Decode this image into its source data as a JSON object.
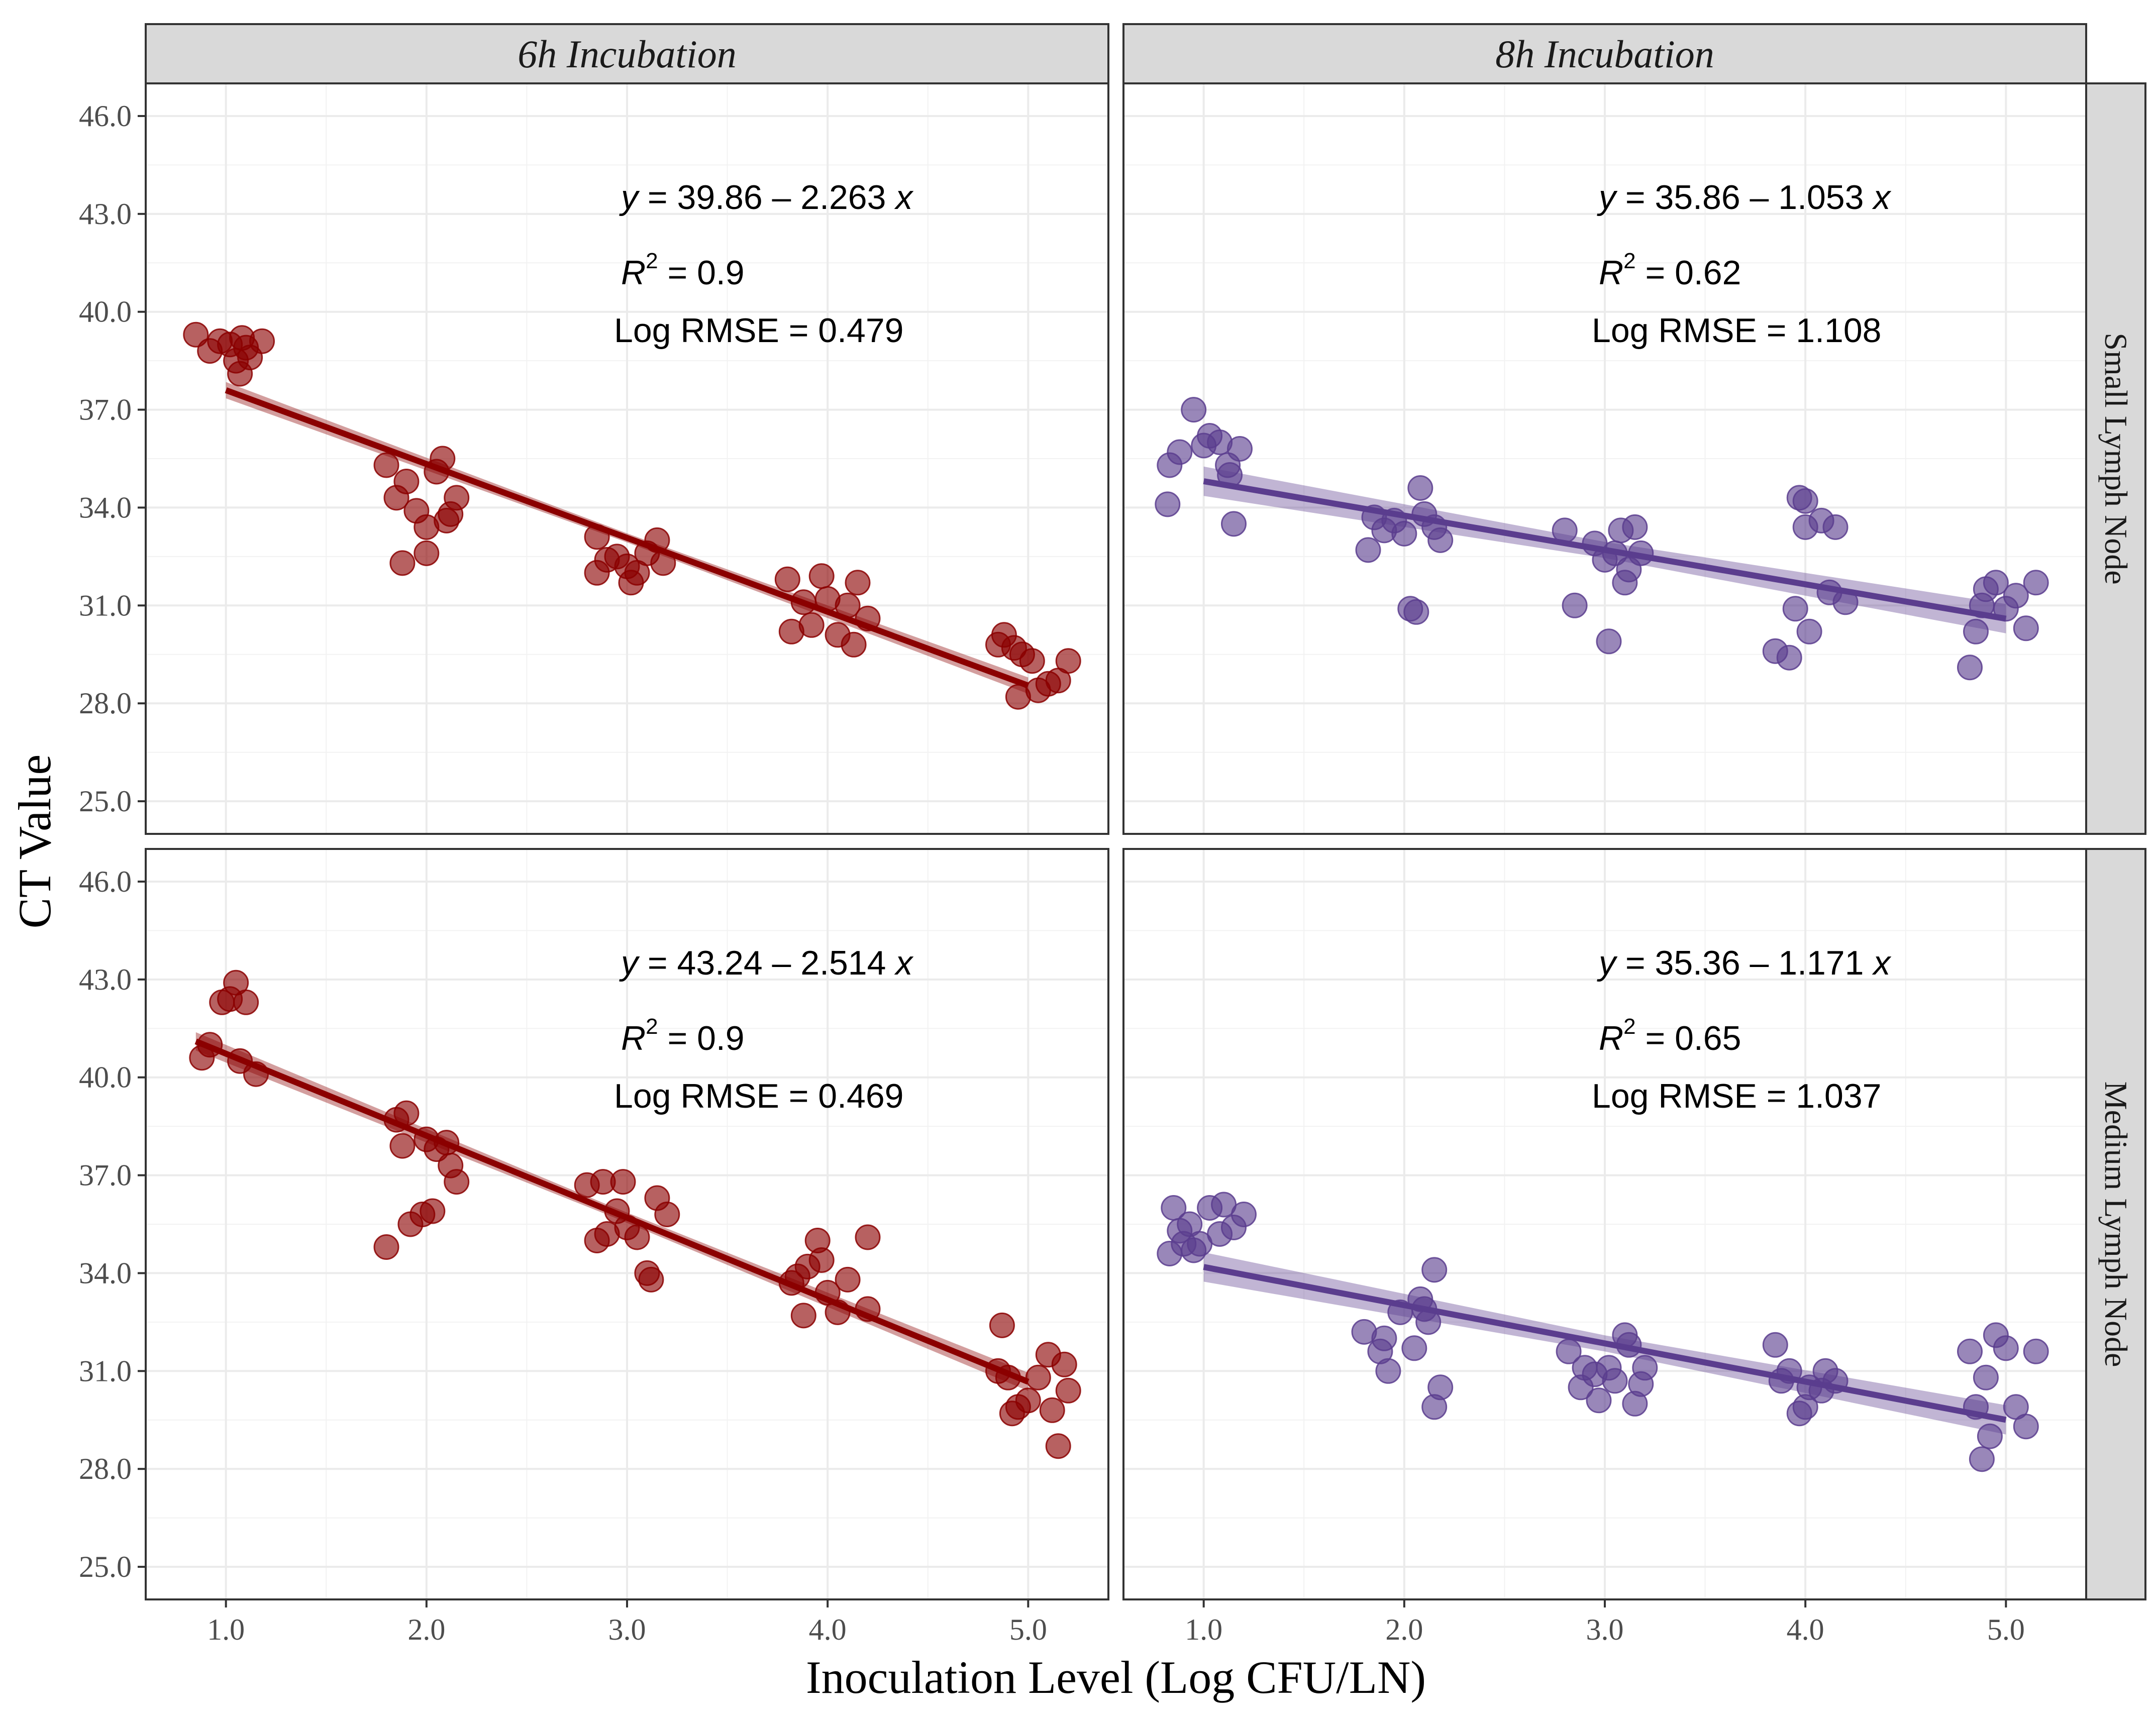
{
  "chart_data": {
    "type": "scatter",
    "xlabel": "Inoculation Level (Log CFU/LN)",
    "ylabel": "CT Value",
    "xlim": [
      0.6,
      5.4
    ],
    "ylim": [
      24.0,
      47.0
    ],
    "x_ticks": [
      "1.0",
      "2.0",
      "3.0",
      "4.0",
      "5.0"
    ],
    "x_tick_values": [
      1,
      2,
      3,
      4,
      5
    ],
    "y_ticks": [
      "25.0",
      "28.0",
      "31.0",
      "34.0",
      "37.0",
      "40.0",
      "43.0",
      "46.0"
    ],
    "y_tick_values": [
      25,
      28,
      31,
      34,
      37,
      40,
      43,
      46
    ],
    "columns": [
      "6h Incubation",
      "8h Incubation"
    ],
    "rows": [
      "Small Lymph Node",
      "Medium Lymph Node"
    ],
    "panels": [
      {
        "name": "small-6h",
        "row": 0,
        "col": 0,
        "color": "#8b0000",
        "intercept": 39.86,
        "slope": -2.263,
        "fit_x": [
          1.0,
          5.0
        ],
        "ci_half": 0.25,
        "eq_y": "y",
        "eq_rest": " = 39.86 – 2.263 ",
        "eq_x": "x",
        "r2_label": "R",
        "r2_sup": "2",
        "r2_value": " = 0.9",
        "rmse": "Log RMSE = 0.479",
        "points": [
          [
            0.85,
            39.3
          ],
          [
            0.92,
            38.8
          ],
          [
            0.97,
            39.1
          ],
          [
            1.02,
            39.0
          ],
          [
            1.05,
            38.5
          ],
          [
            1.07,
            38.1
          ],
          [
            1.08,
            39.2
          ],
          [
            1.1,
            38.9
          ],
          [
            1.12,
            38.6
          ],
          [
            1.18,
            39.1
          ],
          [
            1.8,
            35.3
          ],
          [
            1.85,
            34.3
          ],
          [
            1.88,
            32.3
          ],
          [
            1.9,
            34.8
          ],
          [
            1.95,
            33.9
          ],
          [
            2.0,
            33.4
          ],
          [
            2.0,
            32.6
          ],
          [
            2.05,
            35.1
          ],
          [
            2.08,
            35.5
          ],
          [
            2.1,
            33.6
          ],
          [
            2.12,
            33.8
          ],
          [
            2.15,
            34.3
          ],
          [
            2.85,
            33.1
          ],
          [
            2.85,
            32.0
          ],
          [
            2.9,
            32.4
          ],
          [
            2.95,
            32.5
          ],
          [
            3.0,
            32.2
          ],
          [
            3.02,
            31.7
          ],
          [
            3.05,
            32.0
          ],
          [
            3.1,
            32.6
          ],
          [
            3.15,
            33.0
          ],
          [
            3.18,
            32.3
          ],
          [
            3.8,
            31.8
          ],
          [
            3.82,
            30.2
          ],
          [
            3.88,
            31.1
          ],
          [
            3.92,
            30.4
          ],
          [
            3.97,
            31.9
          ],
          [
            4.0,
            31.2
          ],
          [
            4.05,
            30.1
          ],
          [
            4.1,
            31.0
          ],
          [
            4.13,
            29.8
          ],
          [
            4.15,
            31.7
          ],
          [
            4.2,
            30.6
          ],
          [
            4.85,
            29.8
          ],
          [
            4.88,
            30.1
          ],
          [
            4.93,
            29.7
          ],
          [
            4.95,
            28.2
          ],
          [
            4.97,
            29.5
          ],
          [
            5.02,
            29.3
          ],
          [
            5.05,
            28.4
          ],
          [
            5.1,
            28.6
          ],
          [
            5.15,
            28.7
          ],
          [
            5.2,
            29.3
          ]
        ]
      },
      {
        "name": "small-8h",
        "row": 0,
        "col": 1,
        "color": "#5b3d8e",
        "intercept": 35.86,
        "slope": -1.053,
        "fit_x": [
          1.0,
          5.0
        ],
        "ci_half": 0.45,
        "eq_y": "y",
        "eq_rest": " = 35.86 – 1.053 ",
        "eq_x": "x",
        "r2_label": "R",
        "r2_sup": "2",
        "r2_value": " = 0.62",
        "rmse": "Log RMSE = 1.108",
        "points": [
          [
            0.82,
            34.1
          ],
          [
            0.83,
            35.3
          ],
          [
            0.88,
            35.7
          ],
          [
            0.95,
            37.0
          ],
          [
            1.0,
            35.9
          ],
          [
            1.03,
            36.2
          ],
          [
            1.08,
            36.0
          ],
          [
            1.12,
            35.3
          ],
          [
            1.13,
            35.0
          ],
          [
            1.15,
            33.5
          ],
          [
            1.18,
            35.8
          ],
          [
            1.82,
            32.7
          ],
          [
            1.85,
            33.7
          ],
          [
            1.9,
            33.3
          ],
          [
            1.95,
            33.6
          ],
          [
            2.0,
            33.2
          ],
          [
            2.03,
            30.9
          ],
          [
            2.06,
            30.8
          ],
          [
            2.08,
            34.6
          ],
          [
            2.1,
            33.8
          ],
          [
            2.15,
            33.4
          ],
          [
            2.18,
            33.0
          ],
          [
            2.8,
            33.3
          ],
          [
            2.85,
            31.0
          ],
          [
            2.95,
            32.9
          ],
          [
            3.0,
            32.4
          ],
          [
            3.02,
            29.9
          ],
          [
            3.05,
            32.6
          ],
          [
            3.08,
            33.3
          ],
          [
            3.1,
            31.7
          ],
          [
            3.12,
            32.1
          ],
          [
            3.15,
            33.4
          ],
          [
            3.18,
            32.6
          ],
          [
            3.85,
            29.6
          ],
          [
            3.92,
            29.4
          ],
          [
            3.95,
            30.9
          ],
          [
            3.97,
            34.3
          ],
          [
            4.0,
            34.2
          ],
          [
            4.0,
            33.4
          ],
          [
            4.02,
            30.2
          ],
          [
            4.08,
            33.6
          ],
          [
            4.12,
            31.4
          ],
          [
            4.15,
            33.4
          ],
          [
            4.2,
            31.1
          ],
          [
            4.82,
            29.1
          ],
          [
            4.85,
            30.2
          ],
          [
            4.88,
            31.0
          ],
          [
            4.9,
            31.5
          ],
          [
            4.95,
            31.7
          ],
          [
            5.0,
            30.9
          ],
          [
            5.05,
            31.3
          ],
          [
            5.1,
            30.3
          ],
          [
            5.15,
            31.7
          ]
        ]
      },
      {
        "name": "medium-6h",
        "row": 1,
        "col": 0,
        "color": "#8b0000",
        "intercept": 43.24,
        "slope": -2.514,
        "fit_x": [
          0.85,
          5.0
        ],
        "ci_half": 0.28,
        "eq_y": "y",
        "eq_rest": " = 43.24 – 2.514 ",
        "eq_x": "x",
        "r2_label": "R",
        "r2_sup": "2",
        "r2_value": " = 0.9",
        "rmse": "Log RMSE = 0.469",
        "points": [
          [
            0.88,
            40.6
          ],
          [
            0.92,
            41.0
          ],
          [
            0.98,
            42.3
          ],
          [
            1.02,
            42.4
          ],
          [
            1.05,
            42.9
          ],
          [
            1.07,
            40.5
          ],
          [
            1.1,
            42.3
          ],
          [
            1.15,
            40.1
          ],
          [
            1.8,
            34.8
          ],
          [
            1.85,
            38.7
          ],
          [
            1.88,
            37.9
          ],
          [
            1.9,
            38.9
          ],
          [
            1.92,
            35.5
          ],
          [
            1.98,
            35.8
          ],
          [
            2.0,
            38.1
          ],
          [
            2.03,
            35.9
          ],
          [
            2.05,
            37.8
          ],
          [
            2.1,
            38.0
          ],
          [
            2.12,
            37.3
          ],
          [
            2.15,
            36.8
          ],
          [
            2.8,
            36.7
          ],
          [
            2.85,
            35.0
          ],
          [
            2.88,
            36.8
          ],
          [
            2.9,
            35.2
          ],
          [
            2.95,
            35.9
          ],
          [
            2.98,
            36.8
          ],
          [
            3.0,
            35.4
          ],
          [
            3.05,
            35.1
          ],
          [
            3.1,
            34.0
          ],
          [
            3.12,
            33.8
          ],
          [
            3.15,
            36.3
          ],
          [
            3.2,
            35.8
          ],
          [
            3.82,
            33.7
          ],
          [
            3.85,
            33.9
          ],
          [
            3.88,
            32.7
          ],
          [
            3.9,
            34.2
          ],
          [
            3.95,
            35.0
          ],
          [
            3.97,
            34.4
          ],
          [
            4.0,
            33.4
          ],
          [
            4.05,
            32.8
          ],
          [
            4.1,
            33.8
          ],
          [
            4.2,
            35.1
          ],
          [
            4.2,
            32.9
          ],
          [
            4.85,
            31.0
          ],
          [
            4.87,
            32.4
          ],
          [
            4.9,
            30.8
          ],
          [
            4.92,
            29.7
          ],
          [
            4.95,
            29.9
          ],
          [
            5.0,
            30.1
          ],
          [
            5.05,
            30.8
          ],
          [
            5.1,
            31.5
          ],
          [
            5.12,
            29.8
          ],
          [
            5.15,
            28.7
          ],
          [
            5.18,
            31.2
          ],
          [
            5.2,
            30.4
          ]
        ]
      },
      {
        "name": "medium-8h",
        "row": 1,
        "col": 1,
        "color": "#5b3d8e",
        "intercept": 35.36,
        "slope": -1.171,
        "fit_x": [
          1.0,
          5.0
        ],
        "ci_half": 0.45,
        "eq_y": "y",
        "eq_rest": " = 35.36 – 1.171 ",
        "eq_x": "x",
        "r2_label": "R",
        "r2_sup": "2",
        "r2_value": " = 0.65",
        "rmse": "Log RMSE = 1.037",
        "points": [
          [
            0.83,
            34.6
          ],
          [
            0.85,
            36.0
          ],
          [
            0.88,
            35.3
          ],
          [
            0.9,
            34.9
          ],
          [
            0.93,
            35.5
          ],
          [
            0.95,
            34.7
          ],
          [
            0.98,
            34.9
          ],
          [
            1.03,
            36.0
          ],
          [
            1.08,
            35.2
          ],
          [
            1.1,
            36.1
          ],
          [
            1.15,
            35.4
          ],
          [
            1.2,
            35.8
          ],
          [
            1.8,
            32.2
          ],
          [
            1.88,
            31.6
          ],
          [
            1.9,
            32.0
          ],
          [
            1.92,
            31.0
          ],
          [
            1.98,
            32.8
          ],
          [
            2.05,
            31.7
          ],
          [
            2.08,
            33.2
          ],
          [
            2.1,
            32.9
          ],
          [
            2.12,
            32.5
          ],
          [
            2.15,
            29.9
          ],
          [
            2.15,
            34.1
          ],
          [
            2.18,
            30.5
          ],
          [
            2.82,
            31.6
          ],
          [
            2.88,
            30.5
          ],
          [
            2.9,
            31.1
          ],
          [
            2.95,
            30.9
          ],
          [
            2.97,
            30.1
          ],
          [
            3.02,
            31.1
          ],
          [
            3.05,
            30.7
          ],
          [
            3.1,
            32.1
          ],
          [
            3.12,
            31.8
          ],
          [
            3.15,
            30.0
          ],
          [
            3.18,
            30.6
          ],
          [
            3.2,
            31.1
          ],
          [
            3.85,
            31.8
          ],
          [
            3.88,
            30.7
          ],
          [
            3.92,
            31.0
          ],
          [
            3.97,
            29.7
          ],
          [
            4.0,
            29.9
          ],
          [
            4.02,
            30.5
          ],
          [
            4.08,
            30.4
          ],
          [
            4.1,
            31.0
          ],
          [
            4.15,
            30.7
          ],
          [
            4.82,
            31.6
          ],
          [
            4.85,
            29.9
          ],
          [
            4.88,
            28.3
          ],
          [
            4.9,
            30.8
          ],
          [
            4.92,
            29.0
          ],
          [
            4.95,
            32.1
          ],
          [
            5.0,
            31.7
          ],
          [
            5.05,
            29.9
          ],
          [
            5.1,
            29.3
          ],
          [
            5.15,
            31.6
          ]
        ]
      }
    ]
  }
}
